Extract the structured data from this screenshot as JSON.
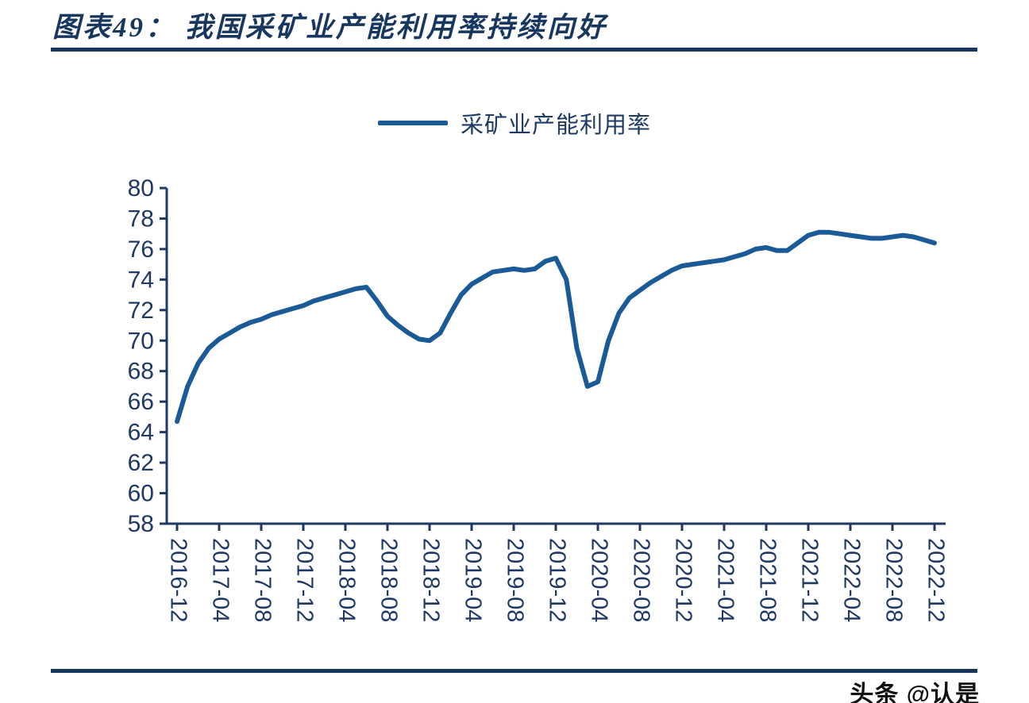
{
  "page": {
    "title": "图表49：  我国采矿业产能利用率持续向好",
    "watermark": "头条 @认是",
    "title_color": "#17375E",
    "rule_color": "#17375E"
  },
  "chart_data": {
    "type": "line",
    "title": "",
    "legend": [
      "采矿业产能利用率"
    ],
    "legend_position": "top",
    "line_color": "#1A5A96",
    "axis_color": "#1F3864",
    "grid": false,
    "ylim": [
      58,
      80
    ],
    "yticks": [
      58,
      60,
      62,
      64,
      66,
      68,
      70,
      72,
      74,
      76,
      78,
      80
    ],
    "x_unit": "month",
    "x_start": "2016-12",
    "xtick_every_months": 4,
    "xticks": [
      "2016-12",
      "2017-04",
      "2017-08",
      "2017-12",
      "2018-04",
      "2018-08",
      "2018-12",
      "2019-04",
      "2019-08",
      "2019-12",
      "2020-04",
      "2020-08",
      "2020-12",
      "2021-04",
      "2021-08",
      "2021-12",
      "2022-04",
      "2022-08",
      "2022-12"
    ],
    "values": [
      64.7,
      67.0,
      68.5,
      69.5,
      70.1,
      70.5,
      70.9,
      71.2,
      71.4,
      71.7,
      71.9,
      72.1,
      72.3,
      72.6,
      72.8,
      73.0,
      73.2,
      73.4,
      73.5,
      72.6,
      71.6,
      71.0,
      70.5,
      70.1,
      70.0,
      70.5,
      71.8,
      73.0,
      73.7,
      74.1,
      74.5,
      74.6,
      74.7,
      74.6,
      74.7,
      75.2,
      75.4,
      74.0,
      69.5,
      67.0,
      67.3,
      70.0,
      71.8,
      72.8,
      73.3,
      73.8,
      74.2,
      74.6,
      74.9,
      75.0,
      75.1,
      75.2,
      75.3,
      75.5,
      75.7,
      76.0,
      76.1,
      75.9,
      75.9,
      76.4,
      76.9,
      77.1,
      77.1,
      77.0,
      76.9,
      76.8,
      76.7,
      76.7,
      76.8,
      76.9,
      76.8,
      76.6,
      76.4
    ]
  }
}
